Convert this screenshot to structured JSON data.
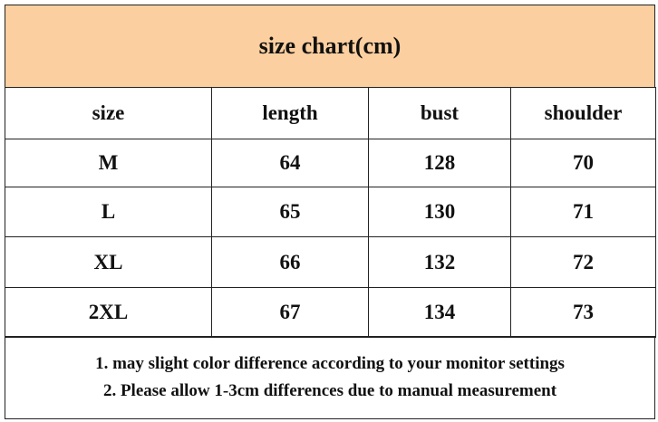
{
  "header": {
    "title": "size chart(cm)"
  },
  "table": {
    "columns": [
      "size",
      "length",
      "bust",
      "shoulder"
    ],
    "rows": [
      [
        "M",
        64,
        128,
        70
      ],
      [
        "L",
        65,
        130,
        71
      ],
      [
        "XL",
        66,
        132,
        72
      ],
      [
        "2XL",
        67,
        134,
        73
      ]
    ]
  },
  "notes": [
    "1. may slight color difference according to your monitor settings",
    "2. Please allow 1-3cm differences due to manual measurement"
  ]
}
